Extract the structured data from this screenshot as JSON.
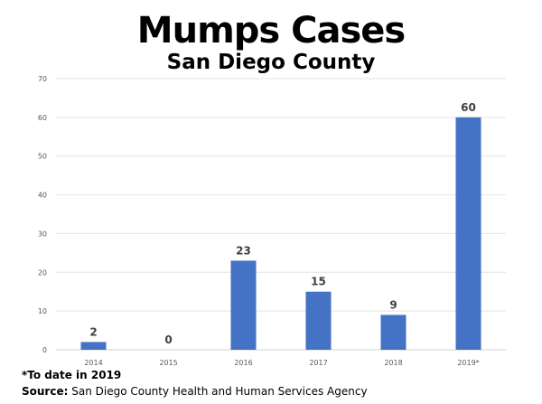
{
  "chart_data": {
    "type": "bar",
    "title": "Mumps Cases",
    "subtitle": "San Diego County",
    "categories": [
      "2014",
      "2015",
      "2016",
      "2017",
      "2018",
      "2019*"
    ],
    "values": [
      2,
      0,
      23,
      15,
      9,
      60
    ],
    "data_labels": [
      "2",
      "0",
      "23",
      "15",
      "9",
      "60"
    ],
    "ylim": [
      0,
      70
    ],
    "yticks": [
      0,
      10,
      20,
      30,
      40,
      50,
      60,
      70
    ],
    "xlabel": "",
    "ylabel": "",
    "grid": true,
    "bar_color": "#4472C4",
    "footnote": "*To date in 2019",
    "source_label": "Source:",
    "source": "San Diego County Health and Human Services Agency"
  }
}
